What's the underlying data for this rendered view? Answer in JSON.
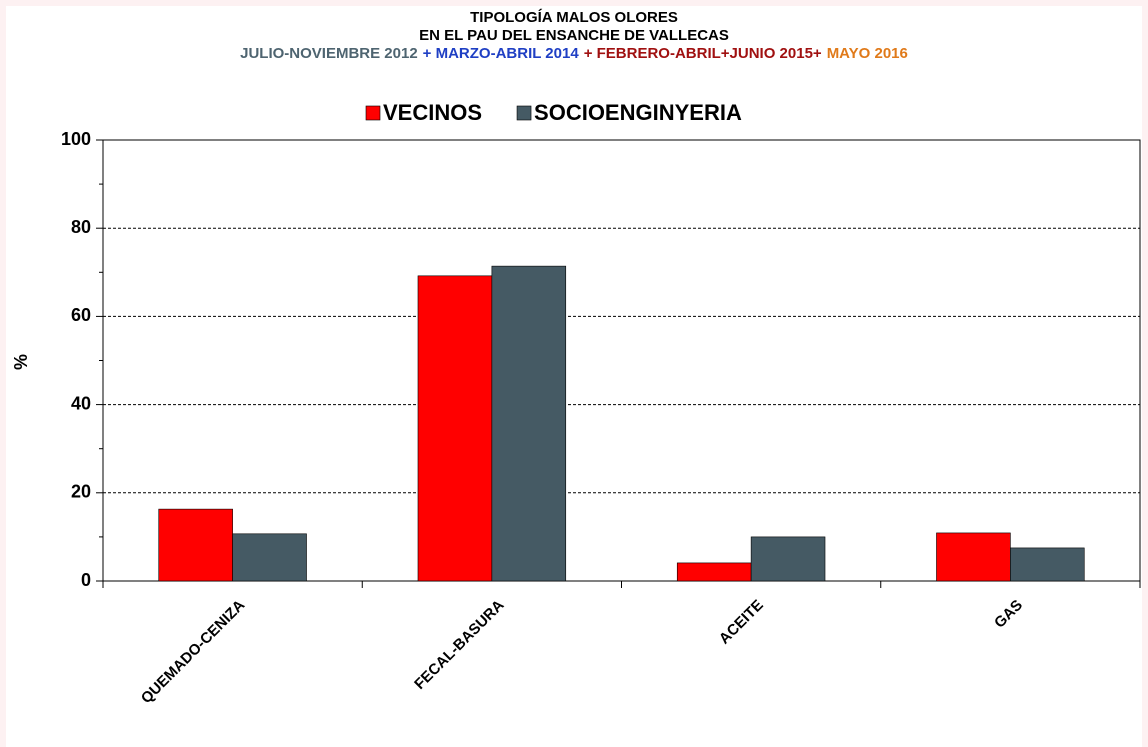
{
  "chart_data": {
    "type": "bar",
    "title_lines": [
      "TIPOLOGÍA MALOS OLORES",
      "EN EL PAU DEL ENSANCHE DE VALLECAS"
    ],
    "subtitle_parts": [
      {
        "text": "JULIO-NOVIEMBRE 2012",
        "color": "#4e6470"
      },
      {
        "text": "+ MARZO-ABRIL 2014",
        "color": "#1f3fc4"
      },
      {
        "text": "+ FEBRERO-ABRIL+JUNIO 2015+",
        "color": "#a01010"
      },
      {
        "text": "MAYO 2016",
        "color": "#e07a1a"
      }
    ],
    "y_label": "%",
    "categories": [
      "QUEMADO-CENIZA",
      "FECAL-BASURA",
      "ACEITE",
      "GAS"
    ],
    "series": [
      {
        "name": "VECINOS",
        "color": "#ff0000",
        "values": [
          16.3,
          69.2,
          4.1,
          10.9
        ]
      },
      {
        "name": "SOCIOENGINYERIA",
        "color": "#455a64",
        "values": [
          10.7,
          71.4,
          10.0,
          7.5
        ]
      }
    ],
    "ylim": [
      0,
      100
    ],
    "yticks": [
      0,
      20,
      40,
      60,
      80,
      100
    ],
    "yminor_ticks": [
      10,
      30,
      50,
      70,
      90
    ],
    "grid": true,
    "legend": "top"
  }
}
